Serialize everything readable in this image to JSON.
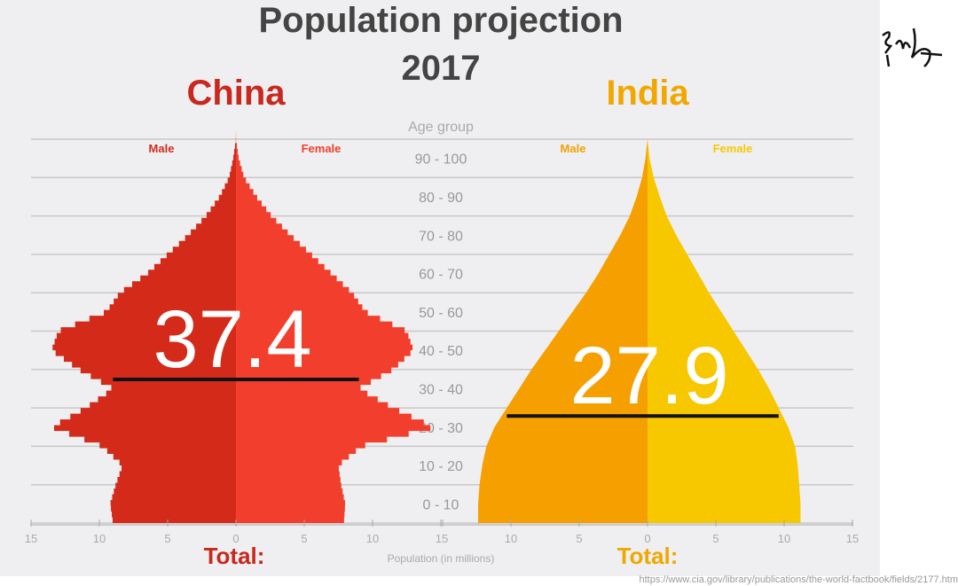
{
  "chart_data": [
    {
      "type": "bar",
      "subtype": "population-pyramid",
      "title": "Population projection",
      "subtitle": "2017",
      "country": "China",
      "ylabel": "Age group",
      "xlabel": "Population (in millions)",
      "xlim": [
        -15,
        15
      ],
      "xticks": [
        15,
        10,
        5,
        0,
        5,
        10,
        15
      ],
      "age_groups": [
        "0 - 10",
        "10 - 20",
        "20 - 30",
        "30 - 40",
        "40 - 50",
        "50 - 60",
        "60 - 70",
        "70 - 80",
        "80 - 90",
        "90 - 100"
      ],
      "ages": [
        0,
        5,
        10,
        15,
        20,
        25,
        30,
        35,
        40,
        45,
        50,
        55,
        60,
        65,
        70,
        75,
        80,
        85,
        90,
        95,
        100
      ],
      "series": [
        {
          "name": "Male",
          "color": "#d42a1a",
          "values": [
            9.0,
            9.2,
            8.8,
            8.3,
            9.8,
            13.5,
            11.0,
            9.0,
            11.5,
            13.5,
            13.0,
            9.5,
            8.5,
            6.5,
            5.0,
            3.5,
            2.2,
            1.2,
            0.5,
            0.2,
            0
          ]
        },
        {
          "name": "Female",
          "color": "#f23e2c",
          "values": [
            7.9,
            8.0,
            7.7,
            7.5,
            9.2,
            14.5,
            11.5,
            9.0,
            11.5,
            13.0,
            12.5,
            9.5,
            8.5,
            7.0,
            5.5,
            4.0,
            2.6,
            1.5,
            0.6,
            0.2,
            0
          ]
        }
      ],
      "median_age": 37.4,
      "median_label": "37.4",
      "total_label": "Total:",
      "name_color": "#c8281e"
    },
    {
      "type": "bar",
      "subtype": "population-pyramid",
      "country": "India",
      "xlim": [
        -15,
        15
      ],
      "xticks": [
        15,
        10,
        5,
        0,
        5,
        10,
        15
      ],
      "ages": [
        0,
        5,
        10,
        15,
        20,
        25,
        30,
        35,
        40,
        45,
        50,
        55,
        60,
        65,
        70,
        75,
        80,
        85,
        90,
        95,
        100
      ],
      "series": [
        {
          "name": "Male",
          "color": "#f5a000",
          "values": [
            12.4,
            12.4,
            12.3,
            12.1,
            11.8,
            11.2,
            10.3,
            9.4,
            8.5,
            7.5,
            6.5,
            5.5,
            4.5,
            3.6,
            2.8,
            2.0,
            1.3,
            0.8,
            0.4,
            0.15,
            0
          ]
        },
        {
          "name": "Female",
          "color": "#f7c800",
          "values": [
            11.2,
            11.2,
            11.1,
            11.0,
            10.8,
            10.3,
            9.6,
            8.9,
            8.1,
            7.2,
            6.3,
            5.4,
            4.5,
            3.7,
            2.9,
            2.1,
            1.4,
            0.9,
            0.45,
            0.15,
            0
          ]
        }
      ],
      "median_age": 27.9,
      "median_label": "27.9",
      "total_label": "Total:",
      "name_color": "#f0a800"
    }
  ],
  "source_url": "https://www.cia.gov/library/publications/the-world-factbook/fields/2177.htm",
  "signature": "handwritten signature"
}
